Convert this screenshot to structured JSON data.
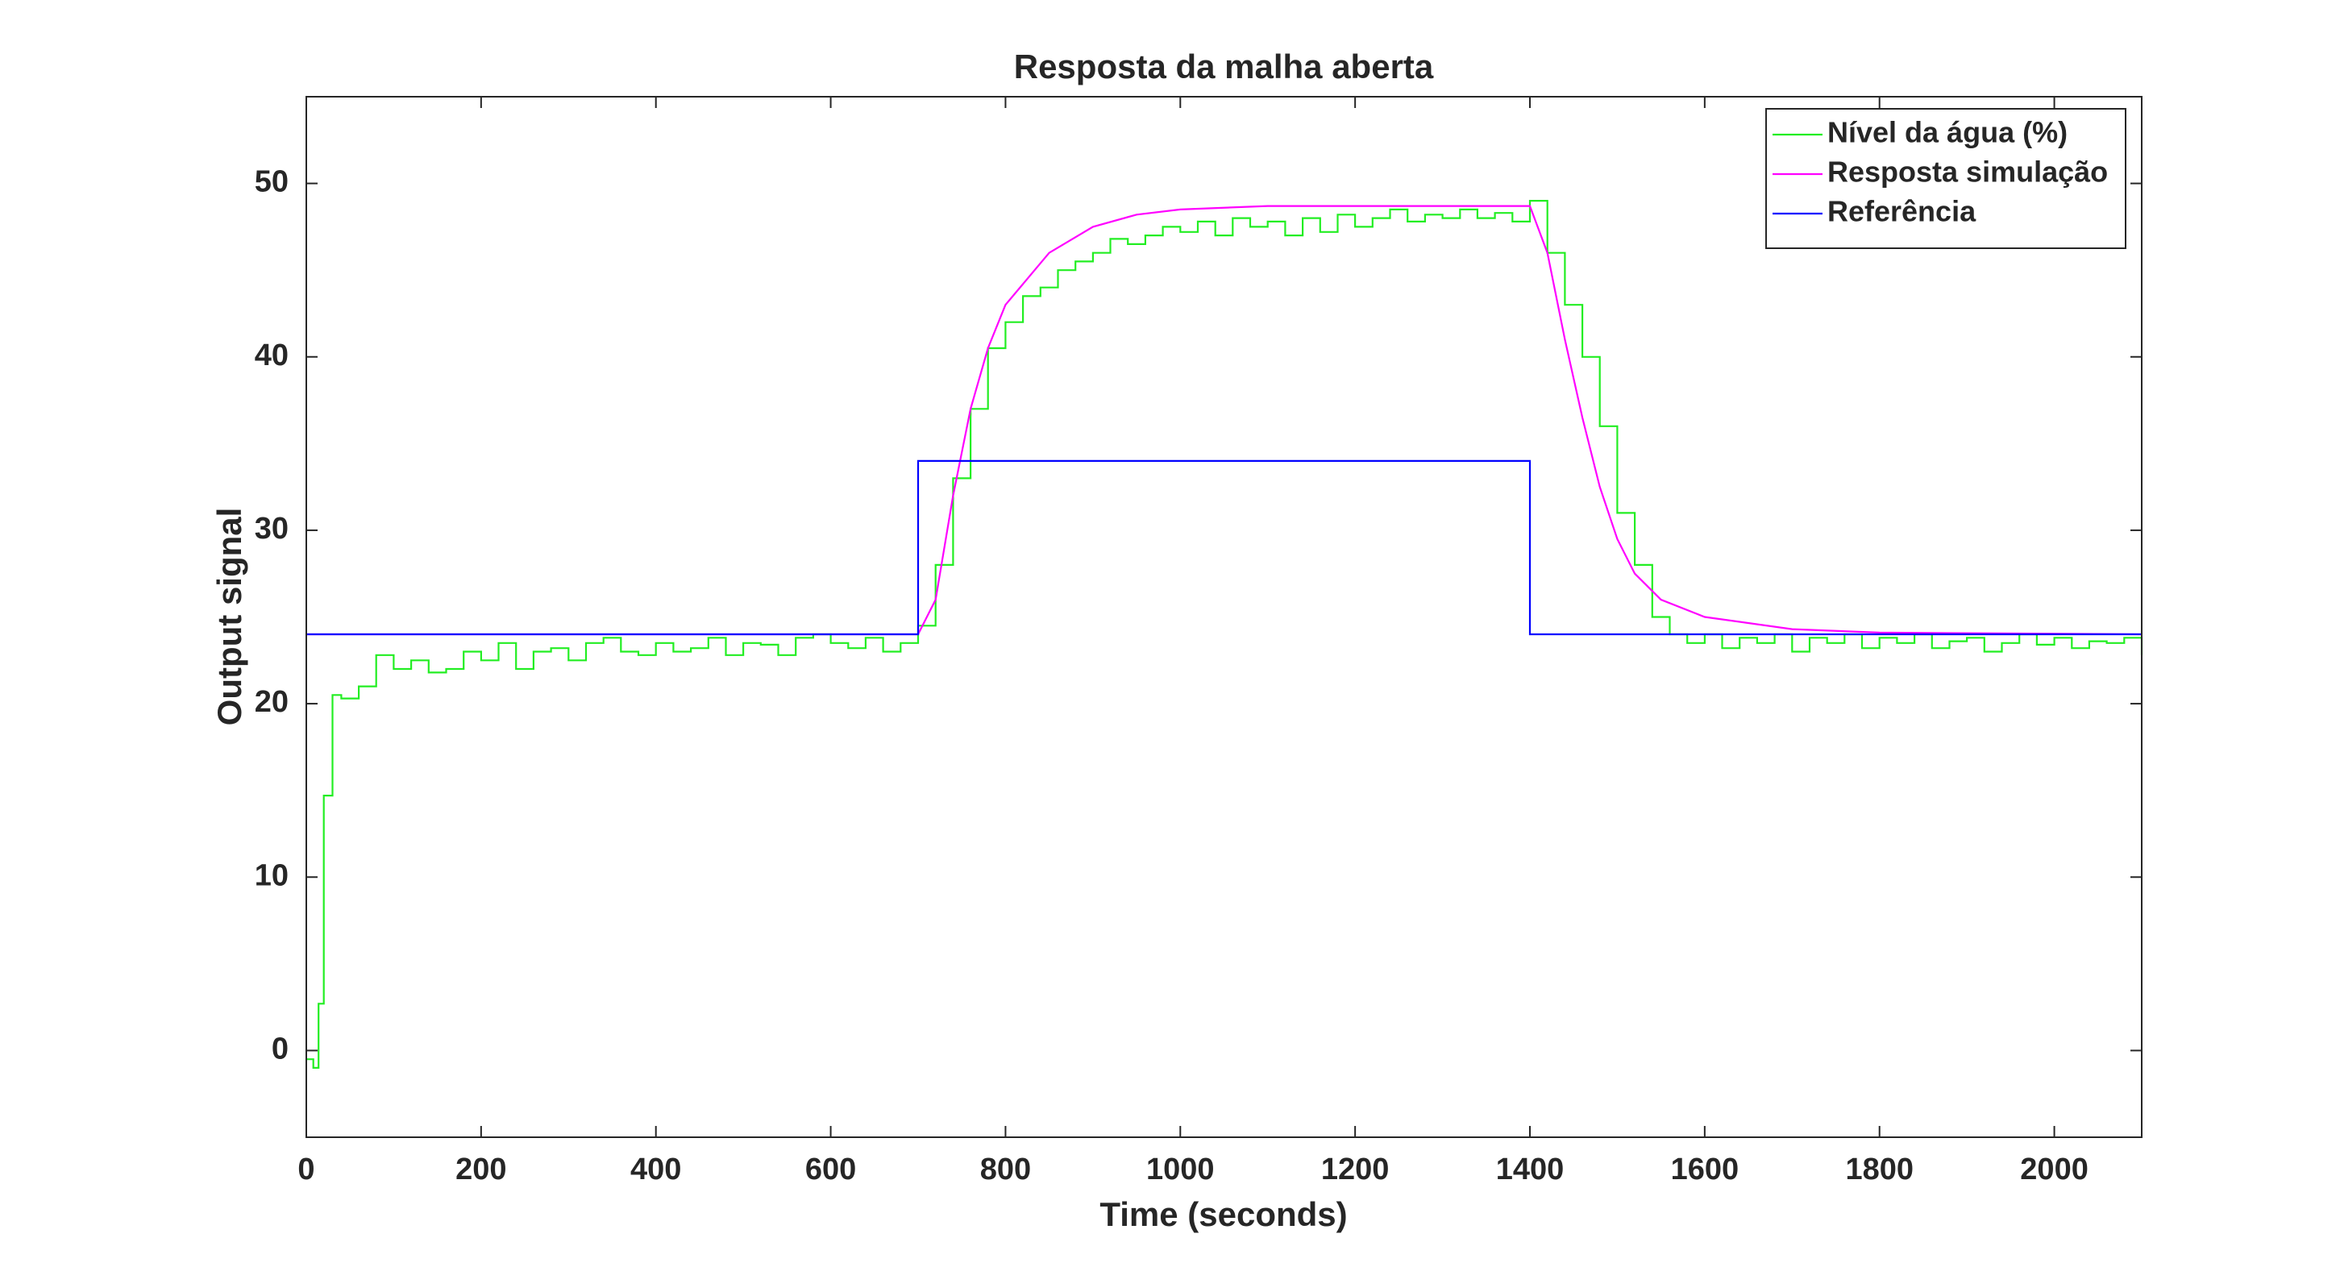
{
  "chart_data": {
    "type": "line",
    "title": "Resposta da malha aberta",
    "x_label": "Time (seconds)",
    "y_label": "Output signal",
    "xlim": [
      0,
      2100
    ],
    "ylim": [
      -5,
      55
    ],
    "xticks": [
      0,
      200,
      400,
      600,
      800,
      1000,
      1200,
      1400,
      1600,
      1800,
      2000
    ],
    "yticks": [
      0,
      10,
      20,
      30,
      40,
      50
    ],
    "legend": "upper right",
    "series": [
      {
        "name": "Nível da água (%)",
        "color": "#22ee22",
        "drawstyle": "steps-post",
        "x": [
          0,
          8,
          14,
          20,
          30,
          40,
          60,
          80,
          100,
          120,
          140,
          160,
          180,
          200,
          220,
          240,
          260,
          280,
          300,
          320,
          340,
          360,
          380,
          400,
          420,
          440,
          460,
          480,
          500,
          520,
          540,
          560,
          580,
          600,
          620,
          640,
          660,
          680,
          700,
          720,
          740,
          760,
          780,
          800,
          820,
          840,
          860,
          880,
          900,
          920,
          940,
          960,
          980,
          1000,
          1020,
          1040,
          1060,
          1080,
          1100,
          1120,
          1140,
          1160,
          1180,
          1200,
          1220,
          1240,
          1260,
          1280,
          1300,
          1320,
          1340,
          1360,
          1380,
          1400,
          1420,
          1440,
          1460,
          1480,
          1500,
          1520,
          1540,
          1560,
          1580,
          1600,
          1620,
          1640,
          1660,
          1680,
          1700,
          1720,
          1740,
          1760,
          1780,
          1800,
          1820,
          1840,
          1860,
          1880,
          1900,
          1920,
          1940,
          1960,
          1980,
          2000,
          2020,
          2040,
          2060,
          2080,
          2100
        ],
        "values": [
          -0.5,
          -1,
          2.7,
          14.7,
          20.5,
          20.3,
          21,
          22.8,
          22,
          22.5,
          21.8,
          22,
          23,
          22.5,
          23.5,
          22,
          23,
          23.2,
          22.5,
          23.5,
          23.8,
          23,
          22.8,
          23.5,
          23,
          23.2,
          23.8,
          22.8,
          23.5,
          23.4,
          22.8,
          23.8,
          24,
          23.5,
          23.2,
          23.8,
          23,
          23.5,
          24.5,
          28,
          33,
          37,
          40.5,
          42,
          43.5,
          44,
          45,
          45.5,
          46,
          46.8,
          46.5,
          47,
          47.5,
          47.2,
          47.8,
          47,
          48,
          47.5,
          47.8,
          47,
          48,
          47.2,
          48.2,
          47.5,
          48,
          48.5,
          47.8,
          48.2,
          48,
          48.5,
          48,
          48.3,
          47.8,
          49,
          46,
          43,
          40,
          36,
          31,
          28,
          25,
          24,
          23.5,
          24,
          23.2,
          23.8,
          23.5,
          24,
          23,
          23.8,
          23.5,
          24,
          23.2,
          23.8,
          23.5,
          24,
          23.2,
          23.6,
          23.8,
          23,
          23.5,
          24,
          23.4,
          23.8,
          23.2,
          23.6,
          23.5,
          23.8,
          22.8
        ]
      },
      {
        "name": "Resposta simulação",
        "color": "#ff00ff",
        "drawstyle": "line",
        "x": [
          0,
          700,
          720,
          740,
          760,
          780,
          800,
          850,
          900,
          950,
          1000,
          1100,
          1200,
          1300,
          1400,
          1420,
          1440,
          1460,
          1480,
          1500,
          1520,
          1550,
          1600,
          1700,
          1800,
          2100
        ],
        "values": [
          24,
          24,
          26,
          32,
          37,
          40.5,
          43,
          46,
          47.5,
          48.2,
          48.5,
          48.7,
          48.7,
          48.7,
          48.7,
          46,
          41,
          36.5,
          32.5,
          29.5,
          27.5,
          26,
          25,
          24.3,
          24.1,
          24
        ]
      },
      {
        "name": "Referência",
        "color": "#0000ff",
        "drawstyle": "line",
        "x": [
          0,
          700,
          700,
          1400,
          1400,
          2100
        ],
        "values": [
          24,
          24,
          34,
          34,
          24,
          24
        ]
      }
    ]
  }
}
